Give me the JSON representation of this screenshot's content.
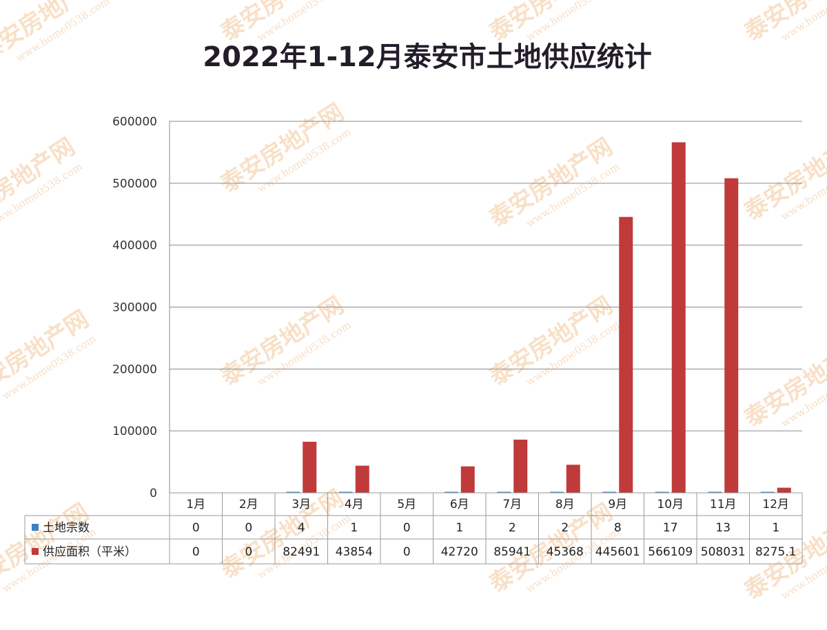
{
  "chart_data": {
    "type": "bar",
    "title": "2022年1-12月泰安市土地供应统计",
    "categories": [
      "1月",
      "2月",
      "3月",
      "4月",
      "5月",
      "6月",
      "7月",
      "8月",
      "9月",
      "10月",
      "11月",
      "12月"
    ],
    "series": [
      {
        "name": "土地宗数",
        "color": "#3f7fc1",
        "values": [
          0,
          0,
          4,
          1,
          0,
          1,
          2,
          2,
          8,
          17,
          13,
          1
        ]
      },
      {
        "name": "供应面积（平米）",
        "color": "#c03a3a",
        "values": [
          0,
          0,
          82491,
          43854,
          0,
          42720,
          85941,
          45368,
          445601,
          566109,
          508031,
          8275.1
        ]
      }
    ],
    "y_ticks": [
      "600000",
      "500000",
      "400000",
      "300000",
      "200000",
      "100000",
      "0"
    ],
    "ylim": [
      0,
      600000
    ],
    "table": {
      "row1": [
        "0",
        "0",
        "4",
        "1",
        "0",
        "1",
        "2",
        "2",
        "8",
        "17",
        "13",
        "1"
      ],
      "row2": [
        "0",
        "0",
        "82491",
        "43854",
        "0",
        "42720",
        "85941",
        "45368",
        "445601",
        "566109",
        "508031",
        "8275.1"
      ]
    },
    "watermark": {
      "brand": "泰安房地产网",
      "url": "www.home0538.com"
    },
    "grid": true,
    "legend": "data-table"
  }
}
